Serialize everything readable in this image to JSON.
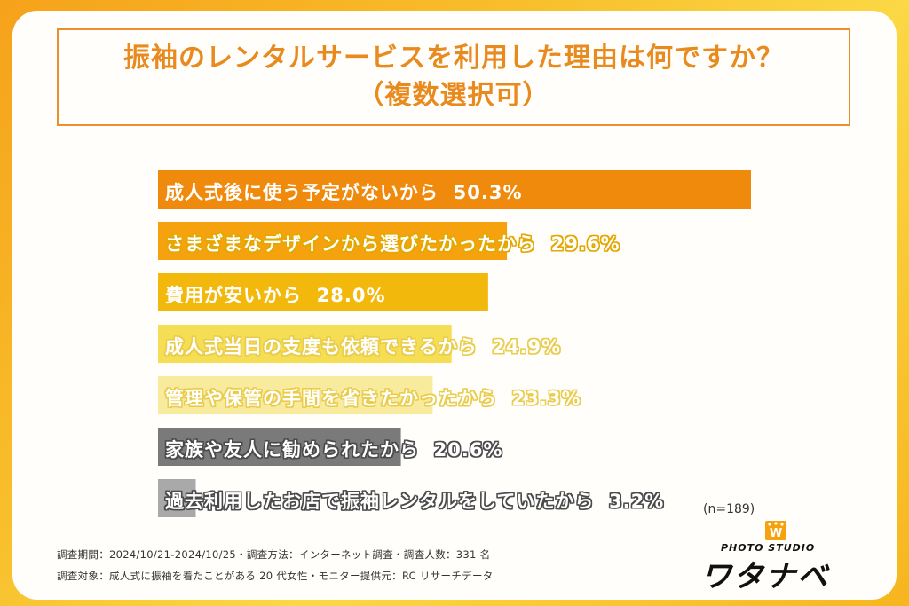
{
  "title": {
    "line1": "振袖のレンタルサービスを利用した理由は何ですか？",
    "line2": "（複数選択可）"
  },
  "chart_data": {
    "type": "bar",
    "orientation": "horizontal",
    "xlim": [
      0,
      50.3
    ],
    "categories": [
      "成人式後に使う予定がないから",
      "さまざまなデザインから選びたかったから",
      "費用が安いから",
      "成人式当日の支度も依頼できるから",
      "管理や保管の手間を省きたかったから",
      "家族や友人に勧められたから",
      "過去利用したお店で振袖レンタルをしていたから"
    ],
    "values": [
      50.3,
      29.6,
      28.0,
      24.9,
      23.3,
      20.6,
      3.2
    ],
    "value_labels": [
      "50.3%",
      "29.6%",
      "28.0%",
      "24.9%",
      "23.3%",
      "20.6%",
      "3.2%"
    ],
    "colors": [
      "#ef8a0c",
      "#f5a20e",
      "#f3b80c",
      "#f5de54",
      "#f8eb9d",
      "#7a7a7a",
      "#a9a9a9"
    ],
    "label_styles": [
      "white",
      "outline-gold",
      "white",
      "outline-soft",
      "outline-soft",
      "outline",
      "outline"
    ]
  },
  "sample_note": "(n=189)",
  "footer": {
    "line1": "調査期間：2024/10/21-2024/10/25・調査方法：インターネット調査・調査人数：331 名",
    "line2": "調査対象：成人式に振袖を着たことがある 20 代女性・モニター提供元：RC リサーチデータ"
  },
  "logo": {
    "sub": "PHOTO STUDIO",
    "main": "ワタナベ",
    "mark_letter": "W",
    "mark_color": "#f5a20e"
  }
}
